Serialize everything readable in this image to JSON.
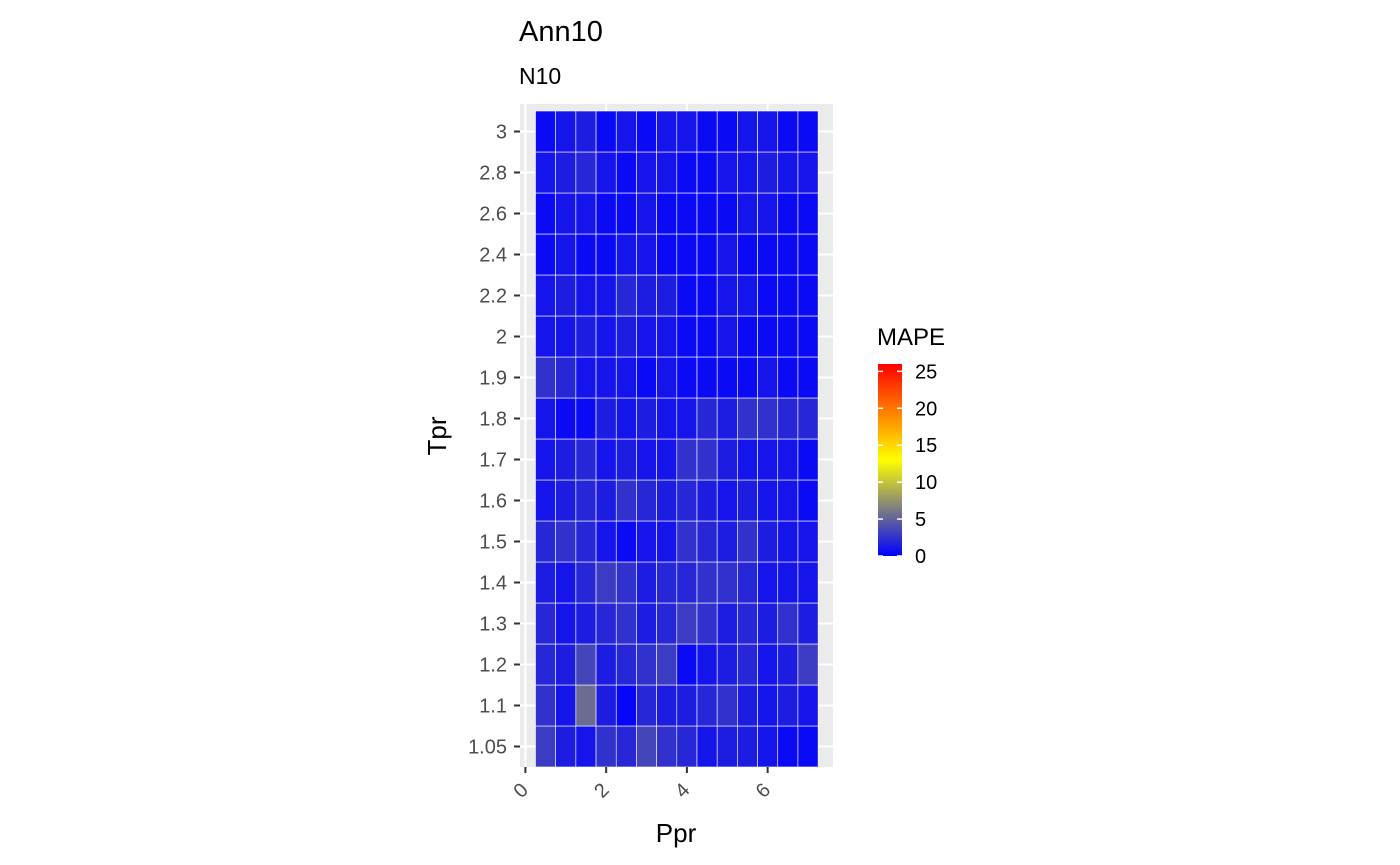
{
  "chart_data": {
    "type": "heatmap",
    "title": "Ann10",
    "subtitle": "N10",
    "xlabel": "Ppr",
    "ylabel": "Tpr",
    "x_values": [
      0.5,
      1.0,
      1.5,
      2.0,
      2.5,
      3.0,
      3.5,
      4.0,
      4.5,
      5.0,
      5.5,
      6.0,
      6.5,
      7.0
    ],
    "y_categories": [
      "1.05",
      "1.1",
      "1.2",
      "1.3",
      "1.4",
      "1.5",
      "1.6",
      "1.7",
      "1.8",
      "1.9",
      "2",
      "2.2",
      "2.4",
      "2.6",
      "2.8",
      "3"
    ],
    "x_ticks": [
      0,
      2,
      4,
      6
    ],
    "xlim": [
      0,
      7.25
    ],
    "legend": {
      "title": "MAPE",
      "position": "right",
      "ticks": [
        0,
        5,
        10,
        15,
        20,
        25
      ],
      "range": [
        0,
        26
      ],
      "colors": [
        "#0000ff",
        "#ffff00",
        "#ff0000"
      ]
    },
    "grid": true,
    "values_by_tpr": [
      {
        "tpr": "1.05",
        "mape": [
          3.0,
          1.5,
          1.0,
          2.5,
          2.0,
          3.5,
          2.5,
          2.0,
          1.0,
          1.5,
          1.5,
          1.0,
          0.5,
          0.5
        ]
      },
      {
        "tpr": "1.1",
        "mape": [
          2.5,
          1.0,
          5.5,
          1.5,
          0.3,
          2.0,
          1.5,
          1.5,
          2.0,
          2.5,
          1.5,
          1.0,
          1.5,
          1.0
        ]
      },
      {
        "tpr": "1.2",
        "mape": [
          2.0,
          1.5,
          3.5,
          1.5,
          2.0,
          2.5,
          3.0,
          0.5,
          1.0,
          1.5,
          2.0,
          1.0,
          1.5,
          3.0
        ]
      },
      {
        "tpr": "1.3",
        "mape": [
          2.0,
          1.0,
          1.5,
          2.0,
          2.5,
          1.5,
          2.0,
          3.0,
          2.5,
          1.5,
          2.0,
          1.5,
          2.5,
          1.5
        ]
      },
      {
        "tpr": "1.4",
        "mape": [
          1.5,
          1.0,
          2.0,
          3.0,
          2.5,
          1.5,
          2.0,
          2.0,
          2.5,
          2.5,
          2.0,
          1.0,
          1.0,
          1.0
        ]
      },
      {
        "tpr": "1.5",
        "mape": [
          2.0,
          2.5,
          2.0,
          1.0,
          0.5,
          1.0,
          1.0,
          2.5,
          2.0,
          1.5,
          2.5,
          1.5,
          1.0,
          1.0
        ]
      },
      {
        "tpr": "1.6",
        "mape": [
          1.0,
          1.5,
          2.0,
          1.5,
          2.5,
          2.0,
          1.5,
          2.0,
          1.5,
          1.0,
          1.5,
          1.0,
          1.0,
          0.5
        ]
      },
      {
        "tpr": "1.7",
        "mape": [
          1.0,
          1.5,
          2.0,
          1.0,
          1.5,
          1.0,
          1.0,
          2.5,
          2.5,
          1.5,
          1.0,
          1.0,
          1.0,
          0.5
        ]
      },
      {
        "tpr": "1.8",
        "mape": [
          1.0,
          0.5,
          0.5,
          1.5,
          1.0,
          1.5,
          1.0,
          1.0,
          2.0,
          1.5,
          2.5,
          2.5,
          2.0,
          2.0
        ]
      },
      {
        "tpr": "1.9",
        "mape": [
          2.5,
          2.0,
          1.0,
          1.0,
          1.0,
          0.5,
          1.0,
          0.5,
          0.5,
          0.5,
          0.5,
          1.0,
          0.5,
          0.5
        ]
      },
      {
        "tpr": "2",
        "mape": [
          1.0,
          1.0,
          1.5,
          1.0,
          1.5,
          1.0,
          1.0,
          0.5,
          0.5,
          1.0,
          0.5,
          0.5,
          0.5,
          0.5
        ]
      },
      {
        "tpr": "2.2",
        "mape": [
          1.0,
          1.5,
          1.0,
          1.0,
          2.0,
          1.5,
          1.5,
          0.5,
          0.5,
          1.0,
          1.0,
          0.5,
          0.5,
          0.5
        ]
      },
      {
        "tpr": "2.4",
        "mape": [
          0.5,
          1.0,
          0.5,
          0.5,
          1.0,
          1.0,
          0.5,
          0.5,
          0.5,
          1.0,
          0.5,
          0.5,
          0.5,
          0.5
        ]
      },
      {
        "tpr": "2.6",
        "mape": [
          0.5,
          1.0,
          1.0,
          0.5,
          0.5,
          1.0,
          0.5,
          0.5,
          0.5,
          0.5,
          1.0,
          1.0,
          0.5,
          0.5
        ]
      },
      {
        "tpr": "2.8",
        "mape": [
          1.0,
          1.5,
          2.0,
          1.0,
          0.5,
          1.0,
          1.0,
          0.5,
          0.5,
          1.0,
          1.0,
          1.5,
          1.0,
          1.0
        ]
      },
      {
        "tpr": "3",
        "mape": [
          0.5,
          1.0,
          1.5,
          0.5,
          1.0,
          0.5,
          1.0,
          1.0,
          0.5,
          0.5,
          1.0,
          1.0,
          0.5,
          0.5
        ]
      }
    ]
  }
}
